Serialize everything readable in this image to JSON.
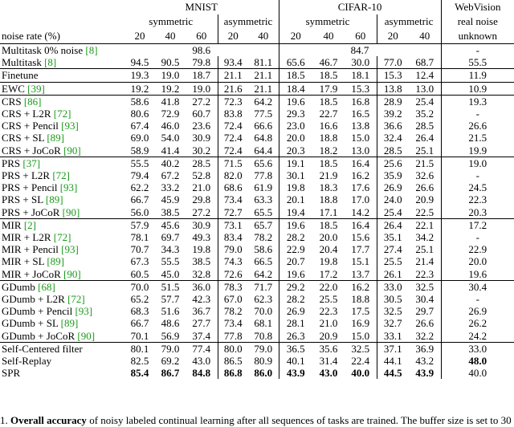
{
  "header": {
    "datasets": [
      "MNIST",
      "CIFAR-10",
      "WebVision"
    ],
    "subheaders": [
      "symmetric",
      "asymmetric",
      "symmetric",
      "asymmetric",
      "real noise"
    ],
    "row_label": "noise rate (%)",
    "rates": [
      "20",
      "40",
      "60",
      "20",
      "40",
      "20",
      "40",
      "60",
      "20",
      "40",
      "unknown"
    ]
  },
  "groups": [
    {
      "rows": [
        {
          "method": "Multitask 0% noise",
          "ref": "[8]",
          "cells": [
            "98.6",
            "84.7",
            "-"
          ]
        },
        {
          "method": "Multitask",
          "ref": "[8]",
          "cells": [
            "94.5",
            "90.5",
            "79.8",
            "93.4",
            "81.1",
            "65.6",
            "46.7",
            "30.0",
            "77.0",
            "68.7",
            "55.5"
          ]
        }
      ]
    },
    {
      "rows": [
        {
          "method": "Finetune",
          "cells": [
            "19.3",
            "19.0",
            "18.7",
            "21.1",
            "21.1",
            "18.5",
            "18.5",
            "18.1",
            "15.3",
            "12.4",
            "11.9"
          ]
        }
      ]
    },
    {
      "rows": [
        {
          "method": "EWC",
          "ref": "[39]",
          "cells": [
            "19.2",
            "19.2",
            "19.0",
            "21.6",
            "21.1",
            "18.4",
            "17.9",
            "15.3",
            "13.8",
            "13.0",
            "10.9"
          ]
        }
      ]
    },
    {
      "rows": [
        {
          "method": "CRS",
          "ref": "[86]",
          "cells": [
            "58.6",
            "41.8",
            "27.2",
            "72.3",
            "64.2",
            "19.6",
            "18.5",
            "16.8",
            "28.9",
            "25.4",
            "19.3"
          ]
        },
        {
          "method": "CRS + L2R",
          "ref": "[72]",
          "cells": [
            "80.6",
            "72.9",
            "60.7",
            "83.8",
            "77.5",
            "29.3",
            "22.7",
            "16.5",
            "39.2",
            "35.2",
            "-"
          ]
        },
        {
          "method": "CRS + Pencil",
          "ref": "[93]",
          "cells": [
            "67.4",
            "46.0",
            "23.6",
            "72.4",
            "66.6",
            "23.0",
            "16.6",
            "13.8",
            "36.6",
            "28.5",
            "26.6"
          ]
        },
        {
          "method": "CRS + SL",
          "ref": "[89]",
          "cells": [
            "69.0",
            "54.0",
            "30.9",
            "72.4",
            "64.8",
            "20.0",
            "18.8",
            "15.0",
            "32.4",
            "26.4",
            "21.5"
          ]
        },
        {
          "method": "CRS + JoCoR",
          "ref": "[90]",
          "cells": [
            "58.9",
            "41.4",
            "30.2",
            "72.4",
            "64.4",
            "20.3",
            "18.2",
            "13.0",
            "28.5",
            "25.1",
            "19.9"
          ]
        }
      ]
    },
    {
      "rows": [
        {
          "method": "PRS",
          "ref": "[37]",
          "cells": [
            "55.5",
            "40.2",
            "28.5",
            "71.5",
            "65.6",
            "19.1",
            "18.5",
            "16.4",
            "25.6",
            "21.5",
            "19.0"
          ]
        },
        {
          "method": "PRS + L2R",
          "ref": "[72]",
          "cells": [
            "79.4",
            "67.2",
            "52.8",
            "82.0",
            "77.8",
            "30.1",
            "21.9",
            "16.2",
            "35.9",
            "32.6",
            "-"
          ]
        },
        {
          "method": "PRS + Pencil",
          "ref": "[93]",
          "cells": [
            "62.2",
            "33.2",
            "21.0",
            "68.6",
            "61.9",
            "19.8",
            "18.3",
            "17.6",
            "26.9",
            "26.6",
            "24.5"
          ]
        },
        {
          "method": "PRS + SL",
          "ref": "[89]",
          "cells": [
            "66.7",
            "45.9",
            "29.8",
            "73.4",
            "63.3",
            "20.1",
            "18.8",
            "17.0",
            "24.0",
            "20.9",
            "22.3"
          ]
        },
        {
          "method": "PRS + JoCoR",
          "ref": "[90]",
          "cells": [
            "56.0",
            "38.5",
            "27.2",
            "72.7",
            "65.5",
            "19.4",
            "17.1",
            "14.2",
            "25.4",
            "22.5",
            "20.3"
          ]
        }
      ]
    },
    {
      "rows": [
        {
          "method": "MIR",
          "ref": "[2]",
          "cells": [
            "57.9",
            "45.6",
            "30.9",
            "73.1",
            "65.7",
            "19.6",
            "18.5",
            "16.4",
            "26.4",
            "22.1",
            "17.2"
          ]
        },
        {
          "method": "MIR + L2R",
          "ref": "[72]",
          "cells": [
            "78.1",
            "69.7",
            "49.3",
            "83.4",
            "78.2",
            "28.2",
            "20.0",
            "15.6",
            "35.1",
            "34.2",
            "-"
          ]
        },
        {
          "method": "MIR + Pencil",
          "ref": "[93]",
          "cells": [
            "70.7",
            "34.3",
            "19.8",
            "79.0",
            "58.6",
            "22.9",
            "20.4",
            "17.7",
            "27.4",
            "25.1",
            "22.9"
          ]
        },
        {
          "method": "MIR + SL",
          "ref": "[89]",
          "cells": [
            "67.3",
            "55.5",
            "38.5",
            "74.3",
            "66.5",
            "20.7",
            "19.8",
            "15.1",
            "25.5",
            "21.4",
            "20.0"
          ]
        },
        {
          "method": "MIR + JoCoR",
          "ref": "[90]",
          "cells": [
            "60.5",
            "45.0",
            "32.8",
            "72.6",
            "64.2",
            "19.6",
            "17.2",
            "13.7",
            "26.1",
            "22.3",
            "19.6"
          ]
        }
      ]
    },
    {
      "rows": [
        {
          "method": "GDumb",
          "ref": "[68]",
          "cells": [
            "70.0",
            "51.5",
            "36.0",
            "78.3",
            "71.7",
            "29.2",
            "22.0",
            "16.2",
            "33.0",
            "32.5",
            "30.4"
          ]
        },
        {
          "method": "GDumb + L2R",
          "ref": "[72]",
          "cells": [
            "65.2",
            "57.7",
            "42.3",
            "67.0",
            "62.3",
            "28.2",
            "25.5",
            "18.8",
            "30.5",
            "30.4",
            "-"
          ]
        },
        {
          "method": "GDumb + Pencil",
          "ref": "[93]",
          "cells": [
            "68.3",
            "51.6",
            "36.7",
            "78.2",
            "70.0",
            "26.9",
            "22.3",
            "17.5",
            "32.5",
            "29.7",
            "26.9"
          ]
        },
        {
          "method": "GDumb + SL",
          "ref": "[89]",
          "cells": [
            "66.7",
            "48.6",
            "27.7",
            "73.4",
            "68.1",
            "28.1",
            "21.0",
            "16.9",
            "32.7",
            "26.6",
            "26.2"
          ]
        },
        {
          "method": "GDumb + JoCoR",
          "ref": "[90]",
          "cells": [
            "70.1",
            "56.9",
            "37.4",
            "77.8",
            "70.8",
            "26.3",
            "20.9",
            "15.0",
            "33.1",
            "32.2",
            "24.2"
          ]
        }
      ]
    },
    {
      "rows": [
        {
          "method": "Self-Centered filter",
          "cells": [
            "80.1",
            "79.0",
            "77.4",
            "80.0",
            "79.0",
            "36.5",
            "35.6",
            "32.5",
            "37.1",
            "36.9",
            "33.0"
          ]
        },
        {
          "method": "Self-Replay",
          "cells": [
            "82.5",
            "69.2",
            "43.0",
            "86.5",
            "80.9",
            "40.1",
            "31.4",
            "22.4",
            "44.1",
            "43.2",
            "48.0"
          ],
          "bold_cells": [
            10
          ]
        },
        {
          "method": "SPR",
          "cells": [
            "85.4",
            "86.7",
            "84.8",
            "86.8",
            "86.0",
            "43.9",
            "43.0",
            "40.0",
            "44.5",
            "43.9",
            "40.0"
          ],
          "bold_cells": [
            0,
            1,
            2,
            3,
            4,
            5,
            6,
            7,
            8,
            9
          ]
        }
      ]
    }
  ],
  "caption": {
    "number": "1.",
    "lead": "Overall accuracy",
    "text": " of noisy labeled continual learning after all sequences of tasks are trained. The buffer size is set to 30"
  }
}
